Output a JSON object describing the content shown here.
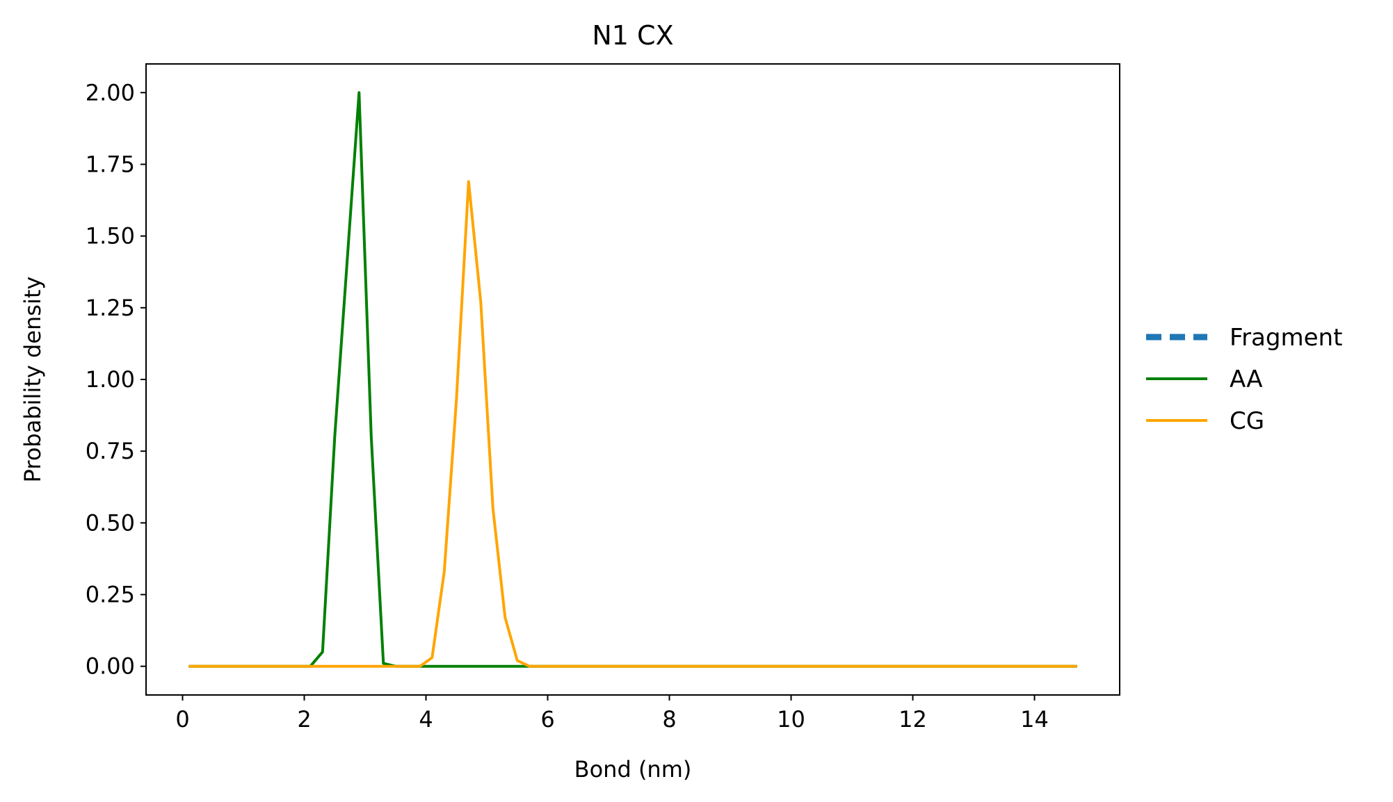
{
  "chart_data": {
    "type": "line",
    "title": "N1 CX",
    "xlabel": "Bond (nm)",
    "ylabel": "Probability density",
    "xlim": [
      -0.6,
      15.4
    ],
    "ylim": [
      -0.1,
      2.1
    ],
    "xticks": [
      0,
      2,
      4,
      6,
      8,
      10,
      12,
      14
    ],
    "xtick_labels": [
      "0",
      "2",
      "4",
      "6",
      "8",
      "10",
      "12",
      "14"
    ],
    "yticks": [
      0.0,
      0.25,
      0.5,
      0.75,
      1.0,
      1.25,
      1.5,
      1.75,
      2.0
    ],
    "ytick_labels": [
      "0.00",
      "0.25",
      "0.50",
      "0.75",
      "1.00",
      "1.25",
      "1.50",
      "1.75",
      "2.00"
    ],
    "grid": false,
    "legend_position": "outside-right",
    "series": [
      {
        "name": "Fragment",
        "color": "#1f77b4",
        "style": "dashed",
        "x": [],
        "y": []
      },
      {
        "name": "AA",
        "color": "#008000",
        "style": "solid",
        "x": [
          0.1,
          2.1,
          2.3,
          2.5,
          2.7,
          2.9,
          3.1,
          3.3,
          3.5,
          3.9,
          4.5,
          5.5,
          5.7,
          14.7
        ],
        "y": [
          0.0,
          0.0,
          0.05,
          0.8,
          1.4,
          2.0,
          0.8,
          0.01,
          0.0,
          0.0,
          0.0,
          0.0,
          0.0,
          0.0
        ]
      },
      {
        "name": "CG",
        "color": "#ffa500",
        "style": "solid",
        "x": [
          0.1,
          3.5,
          3.9,
          4.1,
          4.3,
          4.5,
          4.7,
          4.9,
          5.1,
          5.3,
          5.5,
          5.7,
          14.7
        ],
        "y": [
          0.0,
          0.0,
          0.0,
          0.03,
          0.33,
          0.93,
          1.69,
          1.27,
          0.55,
          0.17,
          0.02,
          0.0,
          0.0
        ]
      }
    ]
  }
}
